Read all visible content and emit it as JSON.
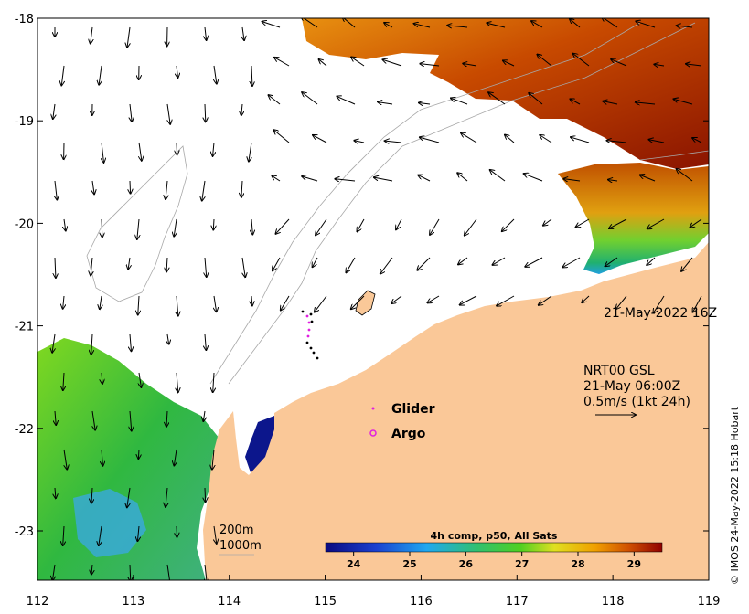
{
  "map": {
    "timestamp": "21-May-2022 16Z",
    "current_source": "NRT00 GSL",
    "current_time": "21-May 06:00Z",
    "current_scale": "0.5m/s (1kt 24h)",
    "legend": {
      "glider": "Glider",
      "argo": "Argo"
    },
    "contours": {
      "shallow": "200m",
      "deep": "1000m"
    },
    "colorbar": {
      "title": "4h comp, p50, All Sats",
      "ticks": [
        "24",
        "25",
        "26",
        "27",
        "28",
        "29"
      ],
      "min": 23.5,
      "max": 29.5
    },
    "x_ticks": [
      "112",
      "113",
      "114",
      "115",
      "116",
      "117",
      "118",
      "119"
    ],
    "y_ticks": [
      "-18",
      "-19",
      "-20",
      "-21",
      "-22",
      "-23"
    ],
    "credit": "© IMOS 24-May-2022 15:18 Hobart",
    "colors": {
      "land": "#fac898",
      "warm": "#9a1a00",
      "mid": "#e8a000",
      "cool": "#3ab84a",
      "cold": "#0a1488",
      "glider": "#e020e0",
      "argo": "#e020e0"
    }
  }
}
